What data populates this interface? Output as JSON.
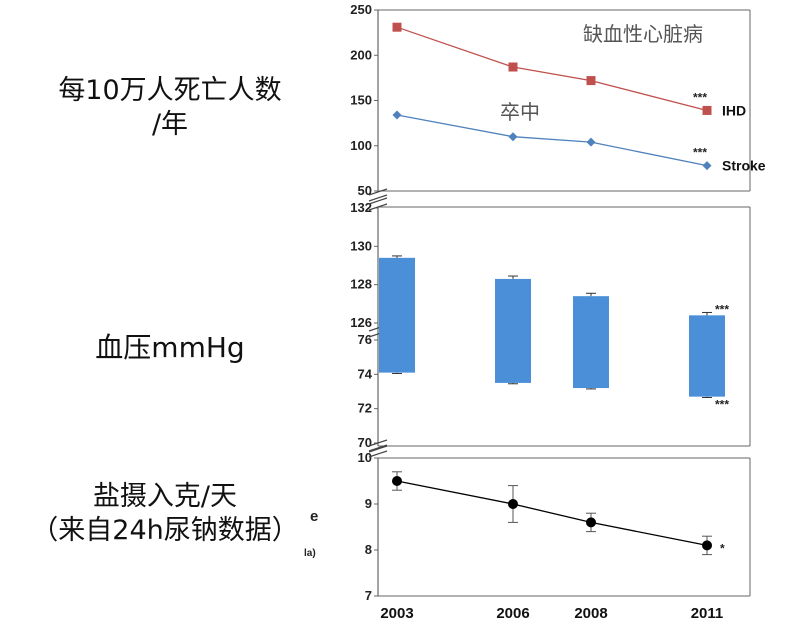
{
  "labels": {
    "mortality": "每10万人死亡人数",
    "mortality_unit": "/年",
    "bp": "血压mmHg",
    "salt": "盐摄入克/天",
    "salt_source": "（来自24h尿钠数据）"
  },
  "chart_data": [
    {
      "type": "line",
      "x": [
        "2003",
        "2006",
        "2008",
        "2011"
      ],
      "ylim": [
        50,
        250
      ],
      "yticks": [
        50,
        100,
        150,
        200,
        250
      ],
      "series": [
        {
          "name": "IHD",
          "values": [
            231,
            187,
            172,
            139
          ],
          "color": "#c0504d",
          "marker": "square",
          "significance": "***"
        },
        {
          "name": "Stroke",
          "values": [
            134,
            110,
            104,
            78
          ],
          "color": "#4f81bd",
          "marker": "diamond",
          "significance": "***"
        }
      ],
      "annotations": [
        "缺血性心脏病",
        "卒中"
      ]
    },
    {
      "type": "bar",
      "subtype": "floating-range",
      "x": [
        "2003",
        "2006",
        "2008",
        "2011"
      ],
      "upper_axis": {
        "ylim": [
          126,
          132
        ],
        "yticks": [
          126,
          128,
          130,
          132
        ]
      },
      "lower_axis": {
        "ylim": [
          70,
          76
        ],
        "yticks": [
          70,
          72,
          74,
          76
        ]
      },
      "series": [
        {
          "name": "systolic",
          "values": [
            129.4,
            128.3,
            127.4,
            126.4
          ],
          "errors": [
            0.1,
            0.15,
            0.15,
            0.15
          ]
        },
        {
          "name": "diastolic",
          "values": [
            74.1,
            73.5,
            73.2,
            72.7
          ],
          "errors": [
            0.05,
            0.05,
            0.05,
            0.05
          ]
        }
      ],
      "color": "#4a8fd8",
      "significance": [
        "***",
        "***"
      ]
    },
    {
      "type": "line",
      "x": [
        "2003",
        "2006",
        "2008",
        "2011"
      ],
      "ylim": [
        7,
        10
      ],
      "yticks": [
        7,
        8,
        9,
        10
      ],
      "series": [
        {
          "name": "salt",
          "values": [
            9.5,
            9.0,
            8.6,
            8.1
          ],
          "errors": [
            0.2,
            0.4,
            0.2,
            0.2
          ],
          "color": "#000000",
          "marker": "circle",
          "significance": "*"
        }
      ],
      "partial_axis_label_fragments": [
        "e",
        "la)"
      ]
    }
  ]
}
